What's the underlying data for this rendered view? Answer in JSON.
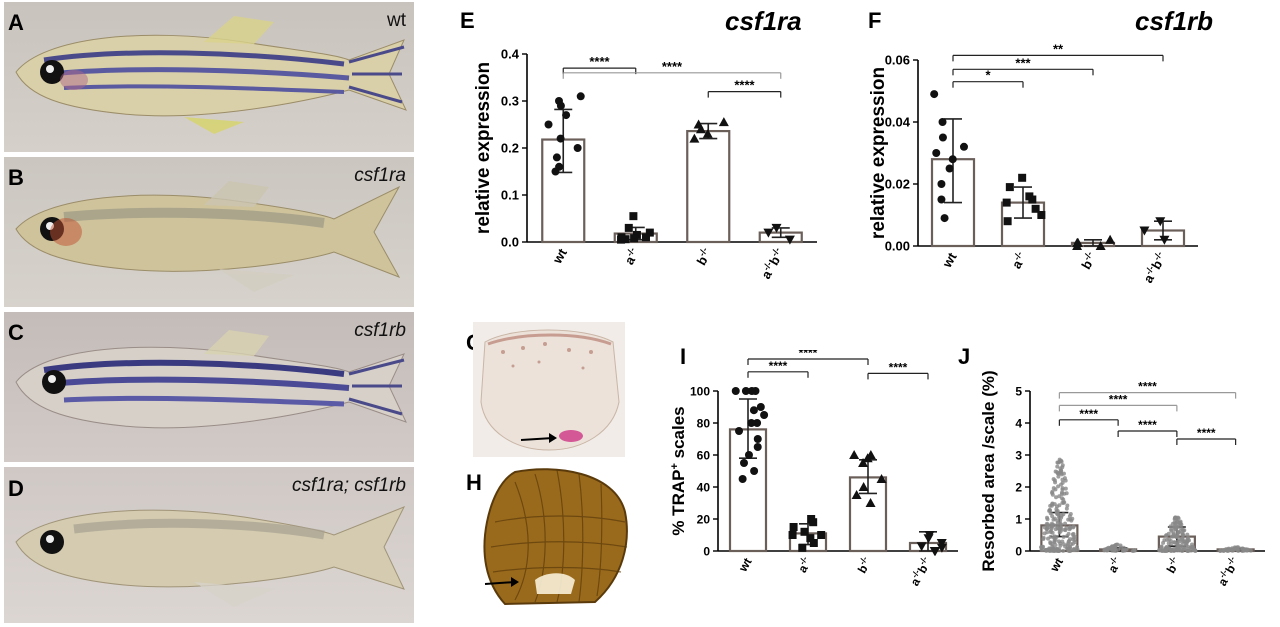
{
  "panels": {
    "A": {
      "letter": "A",
      "label": "wt"
    },
    "B": {
      "letter": "B",
      "label": "csf1ra"
    },
    "C": {
      "letter": "C",
      "label": "csf1rb"
    },
    "D": {
      "letter": "D",
      "label": "csf1ra; csf1rb"
    },
    "E": {
      "letter": "E",
      "gene": "csf1ra"
    },
    "F": {
      "letter": "F",
      "gene": "csf1rb"
    },
    "G": {
      "letter": "G"
    },
    "H": {
      "letter": "H"
    },
    "I": {
      "letter": "I"
    },
    "J": {
      "letter": "J"
    }
  },
  "colors": {
    "bar_edge": "#6b5f5a",
    "errbar": "#222222",
    "bracket_dark": "#222222",
    "bracket_light": "#999999"
  },
  "chart_data": [
    {
      "id": "E",
      "type": "bar",
      "ylabel": "relative expression",
      "ylim": [
        0,
        0.4
      ],
      "yticks": [
        "0.0",
        "0.1",
        "0.2",
        "0.3",
        "0.4"
      ],
      "ytick_values": [
        0,
        0.1,
        0.2,
        0.3,
        0.4
      ],
      "categories": [
        "wt",
        "a-/-",
        "b-/-",
        "a-/-b-/-"
      ],
      "category_labels": [
        {
          "base": "wt",
          "sup": ""
        },
        {
          "base": "a",
          "sup": "-/-"
        },
        {
          "base": "b",
          "sup": "-/-"
        },
        {
          "base": "a",
          "sup": "-/-",
          "base2": "b",
          "sup2": "-/-"
        }
      ],
      "values": [
        0.218,
        0.018,
        0.236,
        0.02
      ],
      "error": [
        [
          0.148,
          0.282
        ],
        [
          0.005,
          0.031
        ],
        [
          0.22,
          0.252
        ],
        [
          0.01,
          0.03
        ]
      ],
      "markers": [
        "circle",
        "square",
        "triangle",
        "triangle-down"
      ],
      "points": [
        [
          0.31,
          0.3,
          0.29,
          0.27,
          0.25,
          0.22,
          0.2,
          0.18,
          0.16,
          0.15
        ],
        [
          0.055,
          0.03,
          0.02,
          0.015,
          0.01,
          0.01,
          0.008,
          0.006,
          0.005
        ],
        [
          0.255,
          0.25,
          0.24,
          0.23,
          0.22
        ],
        [
          0.03,
          0.02,
          0.005
        ]
      ],
      "significance": [
        {
          "from": 0,
          "to": 1,
          "label": "****",
          "y": 0.37,
          "light": false
        },
        {
          "from": 0,
          "to": 3,
          "label": "****",
          "y": 0.36,
          "light": true
        },
        {
          "from": 2,
          "to": 3,
          "label": "****",
          "y": 0.32,
          "light": false
        }
      ]
    },
    {
      "id": "F",
      "type": "bar",
      "ylabel": "relative expression",
      "ylim": [
        0,
        0.06
      ],
      "yticks": [
        "0.00",
        "0.02",
        "0.04",
        "0.06"
      ],
      "ytick_values": [
        0,
        0.02,
        0.04,
        0.06
      ],
      "categories": [
        "wt",
        "a-/-",
        "b-/-",
        "a-/-b-/-"
      ],
      "category_labels": [
        {
          "base": "wt",
          "sup": ""
        },
        {
          "base": "a",
          "sup": "-/-"
        },
        {
          "base": "b",
          "sup": "-/-"
        },
        {
          "base": "a",
          "sup": "-/-",
          "base2": "b",
          "sup2": "-/-"
        }
      ],
      "values": [
        0.028,
        0.014,
        0.001,
        0.005
      ],
      "error": [
        [
          0.014,
          0.041
        ],
        [
          0.009,
          0.019
        ],
        [
          0.0,
          0.002
        ],
        [
          0.002,
          0.008
        ]
      ],
      "markers": [
        "circle",
        "square",
        "triangle",
        "triangle-down"
      ],
      "points": [
        [
          0.049,
          0.04,
          0.035,
          0.032,
          0.03,
          0.028,
          0.025,
          0.02,
          0.015,
          0.009
        ],
        [
          0.022,
          0.019,
          0.016,
          0.015,
          0.014,
          0.012,
          0.01,
          0.008
        ],
        [
          0.002,
          0.001,
          0.001,
          0.0,
          0.0
        ],
        [
          0.008,
          0.005,
          0.002
        ]
      ],
      "significance": [
        {
          "from": 0,
          "to": 1,
          "label": "*",
          "y": 0.053,
          "light": false
        },
        {
          "from": 0,
          "to": 2,
          "label": "***",
          "y": 0.057,
          "light": false
        },
        {
          "from": 0,
          "to": 3,
          "label": "**",
          "y": 0.0615,
          "light": false
        }
      ]
    },
    {
      "id": "I",
      "type": "bar",
      "ylabel": "% TRAP+ scales",
      "ylabel_base": "% TRAP",
      "ylabel_sup": "+",
      "ylabel_rest": " scales",
      "ylim": [
        0,
        100
      ],
      "yticks": [
        "0",
        "20",
        "40",
        "60",
        "80",
        "100"
      ],
      "ytick_values": [
        0,
        20,
        40,
        60,
        80,
        100
      ],
      "categories": [
        "wt",
        "a-/-",
        "b-/-",
        "a-/-b-/-"
      ],
      "category_labels": [
        {
          "base": "wt",
          "sup": ""
        },
        {
          "base": "a",
          "sup": "-/-"
        },
        {
          "base": "b",
          "sup": "-/-"
        },
        {
          "base": "a",
          "sup": "-/-",
          "base2": "b",
          "sup2": "-/-"
        }
      ],
      "values": [
        76,
        11,
        46,
        5
      ],
      "error": [
        [
          58,
          95
        ],
        [
          4,
          17
        ],
        [
          36,
          57
        ],
        [
          0,
          12
        ]
      ],
      "markers": [
        "circle",
        "square",
        "triangle",
        "triangle-down"
      ],
      "points": [
        [
          100,
          100,
          100,
          100,
          90,
          88,
          85,
          80,
          80,
          75,
          70,
          65,
          60,
          55,
          50,
          45
        ],
        [
          20,
          18,
          15,
          12,
          10,
          10,
          8,
          5,
          2
        ],
        [
          60,
          60,
          58,
          55,
          45,
          40,
          35,
          30
        ],
        [
          10,
          8,
          5,
          3,
          2,
          0,
          0
        ]
      ],
      "significance": [
        {
          "from": 0,
          "to": 1,
          "label": "****",
          "y": 112,
          "light": false
        },
        {
          "from": 0,
          "to": 2,
          "label": "****",
          "y": 120,
          "light": false
        },
        {
          "from": 2,
          "to": 3,
          "label": "****",
          "y": 111,
          "light": false
        }
      ]
    },
    {
      "id": "J",
      "type": "bar",
      "ylabel": "Resorbed area /scale (%)",
      "ylim": [
        0,
        5
      ],
      "yticks": [
        "0",
        "1",
        "2",
        "3",
        "4",
        "5"
      ],
      "ytick_values": [
        0,
        1,
        2,
        3,
        4,
        5
      ],
      "categories": [
        "wt",
        "a-/-",
        "b-/-",
        "a-/-b-/-"
      ],
      "category_labels": [
        {
          "base": "wt",
          "sup": ""
        },
        {
          "base": "a",
          "sup": "-/-"
        },
        {
          "base": "b",
          "sup": "-/-"
        },
        {
          "base": "a",
          "sup": "-/-",
          "base2": "b",
          "sup2": "-/-"
        }
      ],
      "values": [
        0.8,
        0.05,
        0.45,
        0.05
      ],
      "error": [
        [
          0.45,
          1.2
        ],
        [
          0.0,
          0.1
        ],
        [
          0.15,
          0.75
        ],
        [
          0.02,
          0.08
        ]
      ],
      "markers": [
        "circle",
        "circle",
        "circle",
        "circle"
      ],
      "dense": [
        {
          "max": 3.0,
          "n": 220
        },
        {
          "max": 0.2,
          "n": 40
        },
        {
          "max": 1.05,
          "n": 140
        },
        {
          "max": 0.12,
          "n": 40
        }
      ],
      "significance": [
        {
          "from": 0,
          "to": 1,
          "label": "****",
          "y": 4.1,
          "light": false
        },
        {
          "from": 0,
          "to": 2,
          "label": "****",
          "y": 4.55,
          "light": true
        },
        {
          "from": 0,
          "to": 3,
          "label": "****",
          "y": 4.95,
          "light": true
        },
        {
          "from": 1,
          "to": 2,
          "label": "****",
          "y": 3.75,
          "light": false
        },
        {
          "from": 2,
          "to": 3,
          "label": "****",
          "y": 3.5,
          "light": false
        }
      ]
    }
  ]
}
